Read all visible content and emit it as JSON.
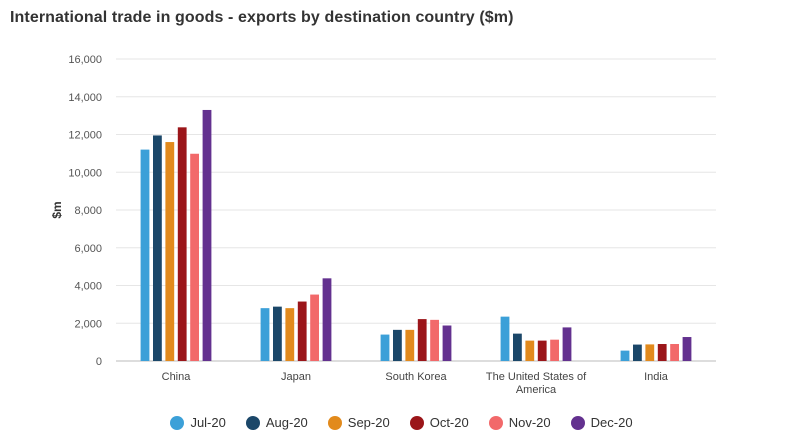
{
  "chart_data": {
    "type": "bar",
    "title": "International trade in goods - exports by destination country ($m)",
    "ylabel": "$m",
    "xlabel": "",
    "ylim": [
      0,
      16000
    ],
    "yticks": [
      0,
      2000,
      4000,
      6000,
      8000,
      10000,
      12000,
      14000,
      16000
    ],
    "ytick_labels": [
      "0",
      "2,000",
      "4,000",
      "6,000",
      "8,000",
      "10,000",
      "12,000",
      "14,000",
      "16,000"
    ],
    "grid": true,
    "legend_position": "bottom",
    "categories": [
      "China",
      "Japan",
      "South Korea",
      "The United States of America",
      "India"
    ],
    "category_label_lines": [
      [
        "China"
      ],
      [
        "Japan"
      ],
      [
        "South Korea"
      ],
      [
        "The United States of",
        "America"
      ],
      [
        "India"
      ]
    ],
    "series": [
      {
        "name": "Jul-20",
        "color": "#3ca0d8",
        "values": [
          11200,
          2800,
          1400,
          2350,
          550
        ]
      },
      {
        "name": "Aug-20",
        "color": "#1b4769",
        "values": [
          11950,
          2880,
          1650,
          1450,
          870
        ]
      },
      {
        "name": "Sep-20",
        "color": "#e28a1c",
        "values": [
          11600,
          2800,
          1650,
          1080,
          880
        ]
      },
      {
        "name": "Oct-20",
        "color": "#9b1519",
        "values": [
          12380,
          3150,
          2220,
          1080,
          900
        ]
      },
      {
        "name": "Nov-20",
        "color": "#f2696a",
        "values": [
          10980,
          3520,
          2180,
          1130,
          900
        ]
      },
      {
        "name": "Dec-20",
        "color": "#63318f",
        "values": [
          13300,
          4380,
          1880,
          1780,
          1270
        ]
      }
    ]
  }
}
